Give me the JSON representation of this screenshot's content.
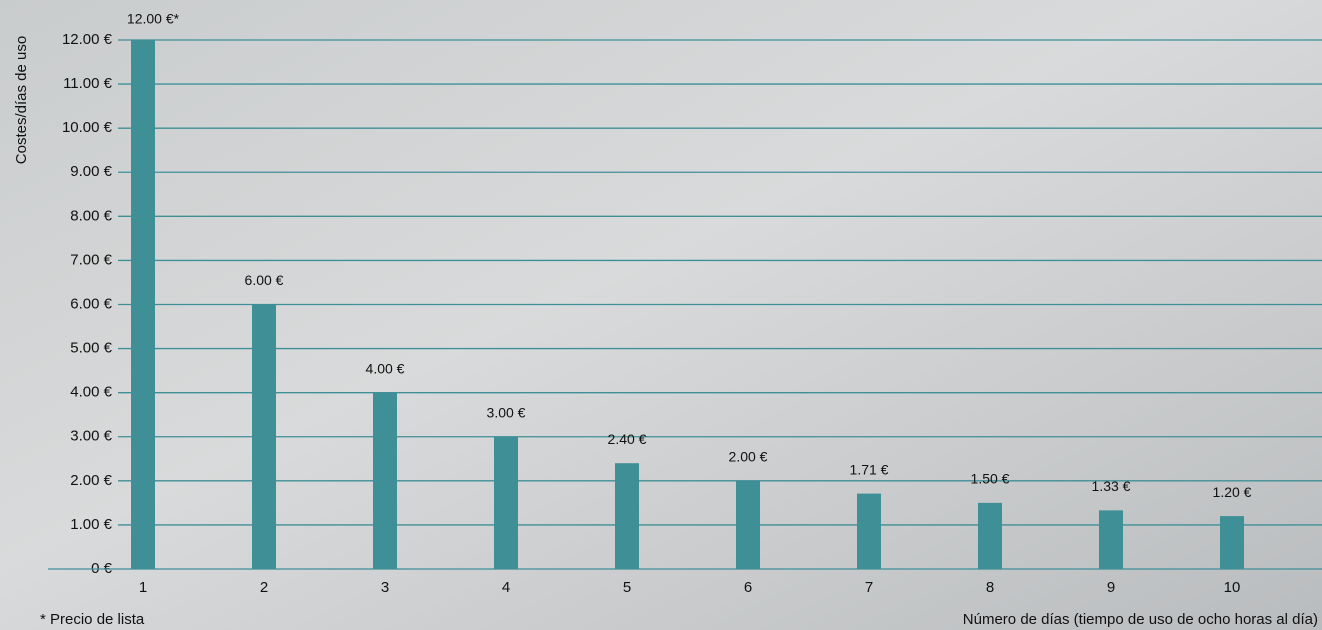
{
  "chart_data": {
    "type": "bar",
    "y_label": "Costes/días de uso",
    "x_label": "Número de días (tiempo de uso de ocho horas al día)",
    "annotation": "* Precio de lista",
    "categories": [
      "1",
      "2",
      "3",
      "4",
      "5",
      "6",
      "7",
      "8",
      "9",
      "10"
    ],
    "values": [
      12,
      6,
      4,
      3,
      2.4,
      2,
      1.71,
      1.5,
      1.33,
      1.2
    ],
    "value_labels": [
      "12.00 €*",
      "6.00 €",
      "4.00 €",
      "3.00 €",
      "2.40 €",
      "2.00 €",
      "1.71 €",
      "1.50 €",
      "1.33 €",
      "1.20 €"
    ],
    "color": "#3f8f96",
    "ylim": [
      0,
      12
    ],
    "yticks": [
      {
        "value": 0,
        "label": "0 €"
      },
      {
        "value": 1,
        "label": "1.00 €"
      },
      {
        "value": 2,
        "label": "2.00 €"
      },
      {
        "value": 3,
        "label": "3.00 €"
      },
      {
        "value": 4,
        "label": "4.00 €"
      },
      {
        "value": 5,
        "label": "5.00 €"
      },
      {
        "value": 6,
        "label": "6.00 €"
      },
      {
        "value": 7,
        "label": "7.00 €"
      },
      {
        "value": 8,
        "label": "8.00 €"
      },
      {
        "value": 9,
        "label": "9.00 €"
      },
      {
        "value": 10,
        "label": "10.00 €"
      },
      {
        "value": 11,
        "label": "11.00 €"
      },
      {
        "value": 12,
        "label": "12.00 €"
      }
    ],
    "grid": true
  }
}
